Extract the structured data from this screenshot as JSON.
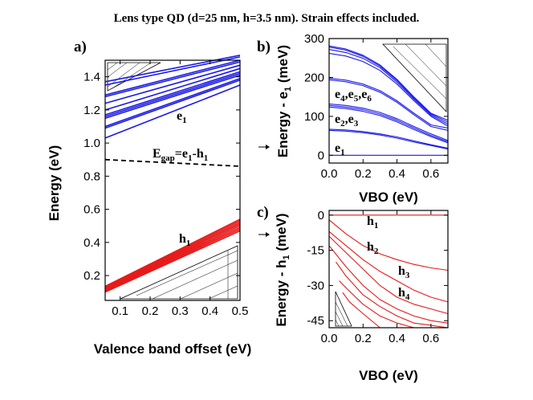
{
  "figure_title": "Lens type QD (d=25 nm, h=3.5 nm). Strain effects included.",
  "colors": {
    "electron": "#1a1ae6",
    "hole": "#e61a1a",
    "axis": "#000000",
    "gap": "#000000"
  },
  "chart_data": [
    {
      "id": "a",
      "type": "line",
      "panel_label": "a)",
      "xlabel": "Valence band offset (eV)",
      "ylabel": "Energy (eV)",
      "xlim": [
        0.05,
        0.5
      ],
      "ylim": [
        0.05,
        1.5
      ],
      "xticks": [
        0.1,
        0.2,
        0.3,
        0.4,
        0.5
      ],
      "xtick_labels": [
        "0.1",
        "0.2",
        "0.3",
        "0.4",
        "0.5"
      ],
      "yticks": [
        0.2,
        0.4,
        0.6,
        0.8,
        1.0,
        1.2,
        1.4
      ],
      "ytick_labels": [
        "0.2",
        "0.4",
        "0.6",
        "0.8",
        "1.0",
        "1.2",
        "1.4"
      ],
      "annotations": {
        "e_label": {
          "main": "e",
          "sub": "1"
        },
        "gap_label": {
          "main": "E",
          "sub": "gap",
          "rest": "=e",
          "sub2": "1",
          "rest2": "-h",
          "sub3": "1"
        },
        "h_label": {
          "main": "h",
          "sub": "1"
        }
      },
      "x": [
        0.05,
        0.5
      ],
      "series": [
        {
          "name": "e1",
          "group": "electron",
          "values": [
            1.03,
            1.35
          ]
        },
        {
          "name": "e2",
          "group": "electron",
          "values": [
            1.09,
            1.38
          ]
        },
        {
          "name": "e3",
          "group": "electron",
          "values": [
            1.1,
            1.39
          ]
        },
        {
          "name": "e4",
          "group": "electron",
          "values": [
            1.15,
            1.41
          ]
        },
        {
          "name": "e5",
          "group": "electron",
          "values": [
            1.16,
            1.42
          ]
        },
        {
          "name": "e6",
          "group": "electron",
          "values": [
            1.17,
            1.43
          ]
        },
        {
          "name": "e7",
          "group": "electron",
          "values": [
            1.2,
            1.45
          ]
        },
        {
          "name": "e8",
          "group": "electron",
          "values": [
            1.24,
            1.47
          ]
        },
        {
          "name": "e9",
          "group": "electron",
          "values": [
            1.28,
            1.49
          ]
        },
        {
          "name": "e10",
          "group": "electron",
          "values": [
            1.29,
            1.5
          ]
        },
        {
          "name": "e11",
          "group": "electron",
          "values": [
            1.35,
            1.52
          ]
        },
        {
          "name": "e12",
          "group": "electron",
          "values": [
            1.37,
            1.53
          ]
        },
        {
          "name": "Egap",
          "group": "gap",
          "values": [
            0.9,
            0.86
          ]
        },
        {
          "name": "h1",
          "group": "hole",
          "values": [
            0.1,
            0.47
          ]
        },
        {
          "name": "h2",
          "group": "hole",
          "values": [
            0.105,
            0.48
          ]
        },
        {
          "name": "h3",
          "group": "hole",
          "values": [
            0.11,
            0.49
          ]
        },
        {
          "name": "h4",
          "group": "hole",
          "values": [
            0.115,
            0.5
          ]
        },
        {
          "name": "h5",
          "group": "hole",
          "values": [
            0.12,
            0.51
          ]
        },
        {
          "name": "h6",
          "group": "hole",
          "values": [
            0.125,
            0.52
          ]
        },
        {
          "name": "h7",
          "group": "hole",
          "values": [
            0.13,
            0.53
          ]
        },
        {
          "name": "h8",
          "group": "hole",
          "values": [
            0.135,
            0.54
          ]
        }
      ]
    },
    {
      "id": "b",
      "type": "line",
      "panel_label": "b)",
      "xlabel": "VBO (eV)",
      "ylabel": "Energy - e",
      "ylabel_sub": "1",
      "ylabel_unit": " (meV)",
      "xlim": [
        0.0,
        0.7
      ],
      "ylim": [
        -20,
        300
      ],
      "xticks": [
        0.0,
        0.2,
        0.4,
        0.6
      ],
      "xtick_labels": [
        "0.0",
        "0.2",
        "0.4",
        "0.6"
      ],
      "yticks": [
        0,
        100,
        200,
        300
      ],
      "ytick_labels": [
        "0",
        "100",
        "200",
        "300"
      ],
      "annotations": {
        "e456": {
          "t1": "e",
          "s1": "4",
          "t2": ",e",
          "s2": "5",
          "t3": ",e",
          "s3": "6"
        },
        "e23": {
          "t1": "e",
          "s1": "2",
          "t2": ",e",
          "s2": "3"
        },
        "e1": {
          "t1": "e",
          "s1": "1"
        }
      },
      "x": [
        0.0,
        0.1,
        0.2,
        0.3,
        0.4,
        0.5,
        0.6,
        0.7
      ],
      "series": [
        {
          "name": "e1",
          "group": "electron",
          "values": [
            0,
            0,
            0,
            0,
            0,
            0,
            0,
            0
          ]
        },
        {
          "name": "e2",
          "group": "electron",
          "values": [
            67,
            65,
            61,
            55,
            47,
            37,
            27,
            18
          ]
        },
        {
          "name": "e3",
          "group": "electron",
          "values": [
            64,
            62,
            58,
            52,
            44,
            34,
            25,
            16
          ]
        },
        {
          "name": "e4",
          "group": "electron",
          "values": [
            132,
            128,
            121,
            110,
            94,
            74,
            55,
            38
          ]
        },
        {
          "name": "e5",
          "group": "electron",
          "values": [
            128,
            124,
            117,
            106,
            90,
            70,
            51,
            35
          ]
        },
        {
          "name": "e6",
          "group": "electron",
          "values": [
            124,
            120,
            113,
            102,
            86,
            66,
            48,
            32
          ]
        },
        {
          "name": "e7",
          "group": "electron",
          "values": [
            198,
            193,
            183,
            166,
            140,
            108,
            78,
            70
          ]
        },
        {
          "name": "e8",
          "group": "electron",
          "values": [
            194,
            189,
            179,
            162,
            136,
            104,
            74,
            64
          ]
        },
        {
          "name": "e9",
          "group": "electron",
          "values": [
            262,
            255,
            241,
            218,
            183,
            140,
            100,
            75
          ]
        },
        {
          "name": "e10",
          "group": "electron",
          "values": [
            272,
            264,
            249,
            225,
            188,
            144,
            103,
            80
          ]
        },
        {
          "name": "e11",
          "group": "electron",
          "values": [
            278,
            270,
            254,
            229,
            192,
            147,
            106,
            85
          ]
        },
        {
          "name": "e12",
          "group": "electron",
          "values": [
            281,
            273,
            257,
            232,
            195,
            150,
            108,
            90
          ]
        }
      ]
    },
    {
      "id": "c",
      "type": "line",
      "panel_label": "c)",
      "xlabel": "VBO (eV)",
      "ylabel": "Energy - h",
      "ylabel_sub": "1",
      "ylabel_unit": " (meV)",
      "xlim": [
        0.0,
        0.7
      ],
      "ylim": [
        -48,
        2
      ],
      "xticks": [
        0.0,
        0.2,
        0.4,
        0.6
      ],
      "xtick_labels": [
        "0.0",
        "0.2",
        "0.4",
        "0.6"
      ],
      "yticks": [
        0,
        -15,
        -30,
        -45
      ],
      "ytick_labels": [
        "0",
        "-15",
        "-30",
        "-45"
      ],
      "annotations": {
        "h1": {
          "t1": "h",
          "s1": "1"
        },
        "h2": {
          "t1": "h",
          "s1": "2"
        },
        "h3": {
          "t1": "h",
          "s1": "3"
        },
        "h4": {
          "t1": "h",
          "s1": "4"
        }
      },
      "series": [
        {
          "name": "h1",
          "group": "hole",
          "x": [
            0.0,
            0.7
          ],
          "values": [
            0,
            0
          ]
        },
        {
          "name": "h2",
          "group": "hole",
          "x": [
            0.0,
            0.1,
            0.2,
            0.3,
            0.4,
            0.5,
            0.6,
            0.7
          ],
          "values": [
            -2,
            -8,
            -13,
            -16.5,
            -19,
            -21,
            -22.5,
            -23.5
          ]
        },
        {
          "name": "h3",
          "group": "hole",
          "x": [
            0.0,
            0.1,
            0.2,
            0.3,
            0.4,
            0.5,
            0.6,
            0.7
          ],
          "values": [
            -7,
            -13,
            -19,
            -24,
            -28,
            -32,
            -35,
            -37
          ]
        },
        {
          "name": "h4",
          "group": "hole",
          "x": [
            0.0,
            0.1,
            0.2,
            0.3,
            0.4,
            0.5,
            0.6,
            0.7
          ],
          "values": [
            -9,
            -16,
            -23,
            -30,
            -35,
            -38,
            -40,
            -42
          ]
        },
        {
          "name": "h5",
          "group": "hole",
          "x": [
            0.0,
            0.1,
            0.2,
            0.3,
            0.4,
            0.5,
            0.6,
            0.7
          ],
          "values": [
            -13,
            -22,
            -30,
            -36,
            -40,
            -43,
            -45,
            -46
          ]
        },
        {
          "name": "h6",
          "group": "hole",
          "x": [
            0.04,
            0.1,
            0.2,
            0.3,
            0.4,
            0.5,
            0.6,
            0.7
          ],
          "values": [
            -20,
            -26,
            -34,
            -39,
            -43,
            -46,
            -47,
            -48
          ]
        },
        {
          "name": "h7",
          "group": "hole",
          "x": [
            0.06,
            0.1,
            0.2,
            0.3,
            0.4,
            0.5
          ],
          "values": [
            -28,
            -31,
            -38,
            -43,
            -46,
            -48
          ]
        },
        {
          "name": "h8",
          "group": "hole",
          "x": [
            0.08,
            0.12,
            0.2,
            0.3
          ],
          "values": [
            -33,
            -37,
            -42,
            -48
          ]
        }
      ]
    }
  ]
}
